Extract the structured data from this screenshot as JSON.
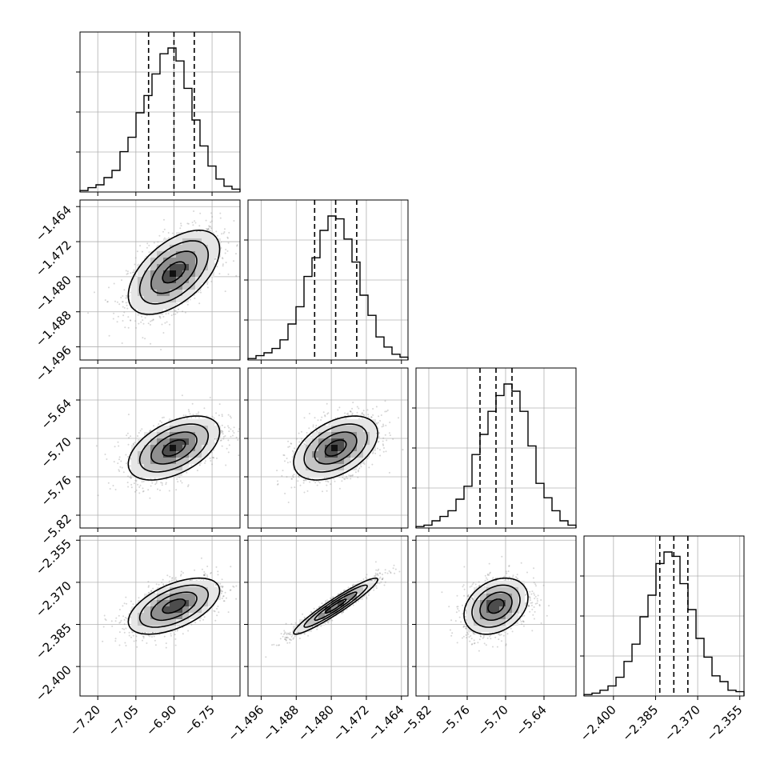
{
  "chart_data": {
    "type": "corner",
    "parameters": [
      {
        "index": 0,
        "range": [
          -7.27,
          -6.64
        ],
        "ticks": [
          "-7.20",
          "-7.05",
          "-6.90",
          "-6.75"
        ],
        "quantiles": [
          -7.0,
          -6.9,
          -6.82
        ],
        "histogram": [
          0.01,
          0.03,
          0.05,
          0.1,
          0.15,
          0.28,
          0.38,
          0.55,
          0.67,
          0.82,
          0.96,
          1.0,
          0.91,
          0.72,
          0.5,
          0.32,
          0.18,
          0.09,
          0.04,
          0.02
        ]
      },
      {
        "index": 1,
        "range": [
          -1.499,
          -1.4625
        ],
        "ticks": [
          "-1.496",
          "-1.488",
          "-1.480",
          "-1.472",
          "-1.464"
        ],
        "quantiles": [
          -1.4838,
          -1.479,
          -1.4742
        ],
        "histogram": [
          0.01,
          0.03,
          0.05,
          0.08,
          0.14,
          0.25,
          0.37,
          0.58,
          0.71,
          0.9,
          1.0,
          0.98,
          0.84,
          0.68,
          0.45,
          0.31,
          0.16,
          0.09,
          0.04,
          0.02
        ]
      },
      {
        "index": 2,
        "range": [
          -5.84,
          -5.59
        ],
        "ticks": [
          "-5.82",
          "-5.76",
          "-5.70",
          "-5.64"
        ],
        "quantiles": [
          -5.74,
          -5.715,
          -5.69
        ],
        "histogram": [
          0.01,
          0.02,
          0.05,
          0.08,
          0.12,
          0.2,
          0.29,
          0.51,
          0.65,
          0.81,
          0.92,
          1.0,
          0.95,
          0.81,
          0.57,
          0.31,
          0.21,
          0.12,
          0.05,
          0.02
        ]
      },
      {
        "index": 3,
        "range": [
          -2.4105,
          -2.3535
        ],
        "ticks": [
          "-2.400",
          "-2.385",
          "-2.370",
          "-2.355"
        ],
        "quantiles": [
          -2.3835,
          -2.3785,
          -2.3735
        ],
        "histogram": [
          0.01,
          0.02,
          0.04,
          0.07,
          0.13,
          0.24,
          0.36,
          0.55,
          0.7,
          0.92,
          1.0,
          0.97,
          0.78,
          0.6,
          0.4,
          0.27,
          0.14,
          0.1,
          0.04,
          0.03
        ]
      }
    ],
    "pairs": [
      {
        "x": 0,
        "y": 1,
        "corr": 0.55
      },
      {
        "x": 0,
        "y": 2,
        "corr": 0.5
      },
      {
        "x": 1,
        "y": 2,
        "corr": 0.45
      },
      {
        "x": 0,
        "y": 3,
        "corr": 0.55
      },
      {
        "x": 1,
        "y": 3,
        "corr": 0.95
      },
      {
        "x": 2,
        "y": 3,
        "corr": 0.3
      }
    ],
    "grid": true,
    "title": "",
    "xlabel": "",
    "ylabel": ""
  }
}
